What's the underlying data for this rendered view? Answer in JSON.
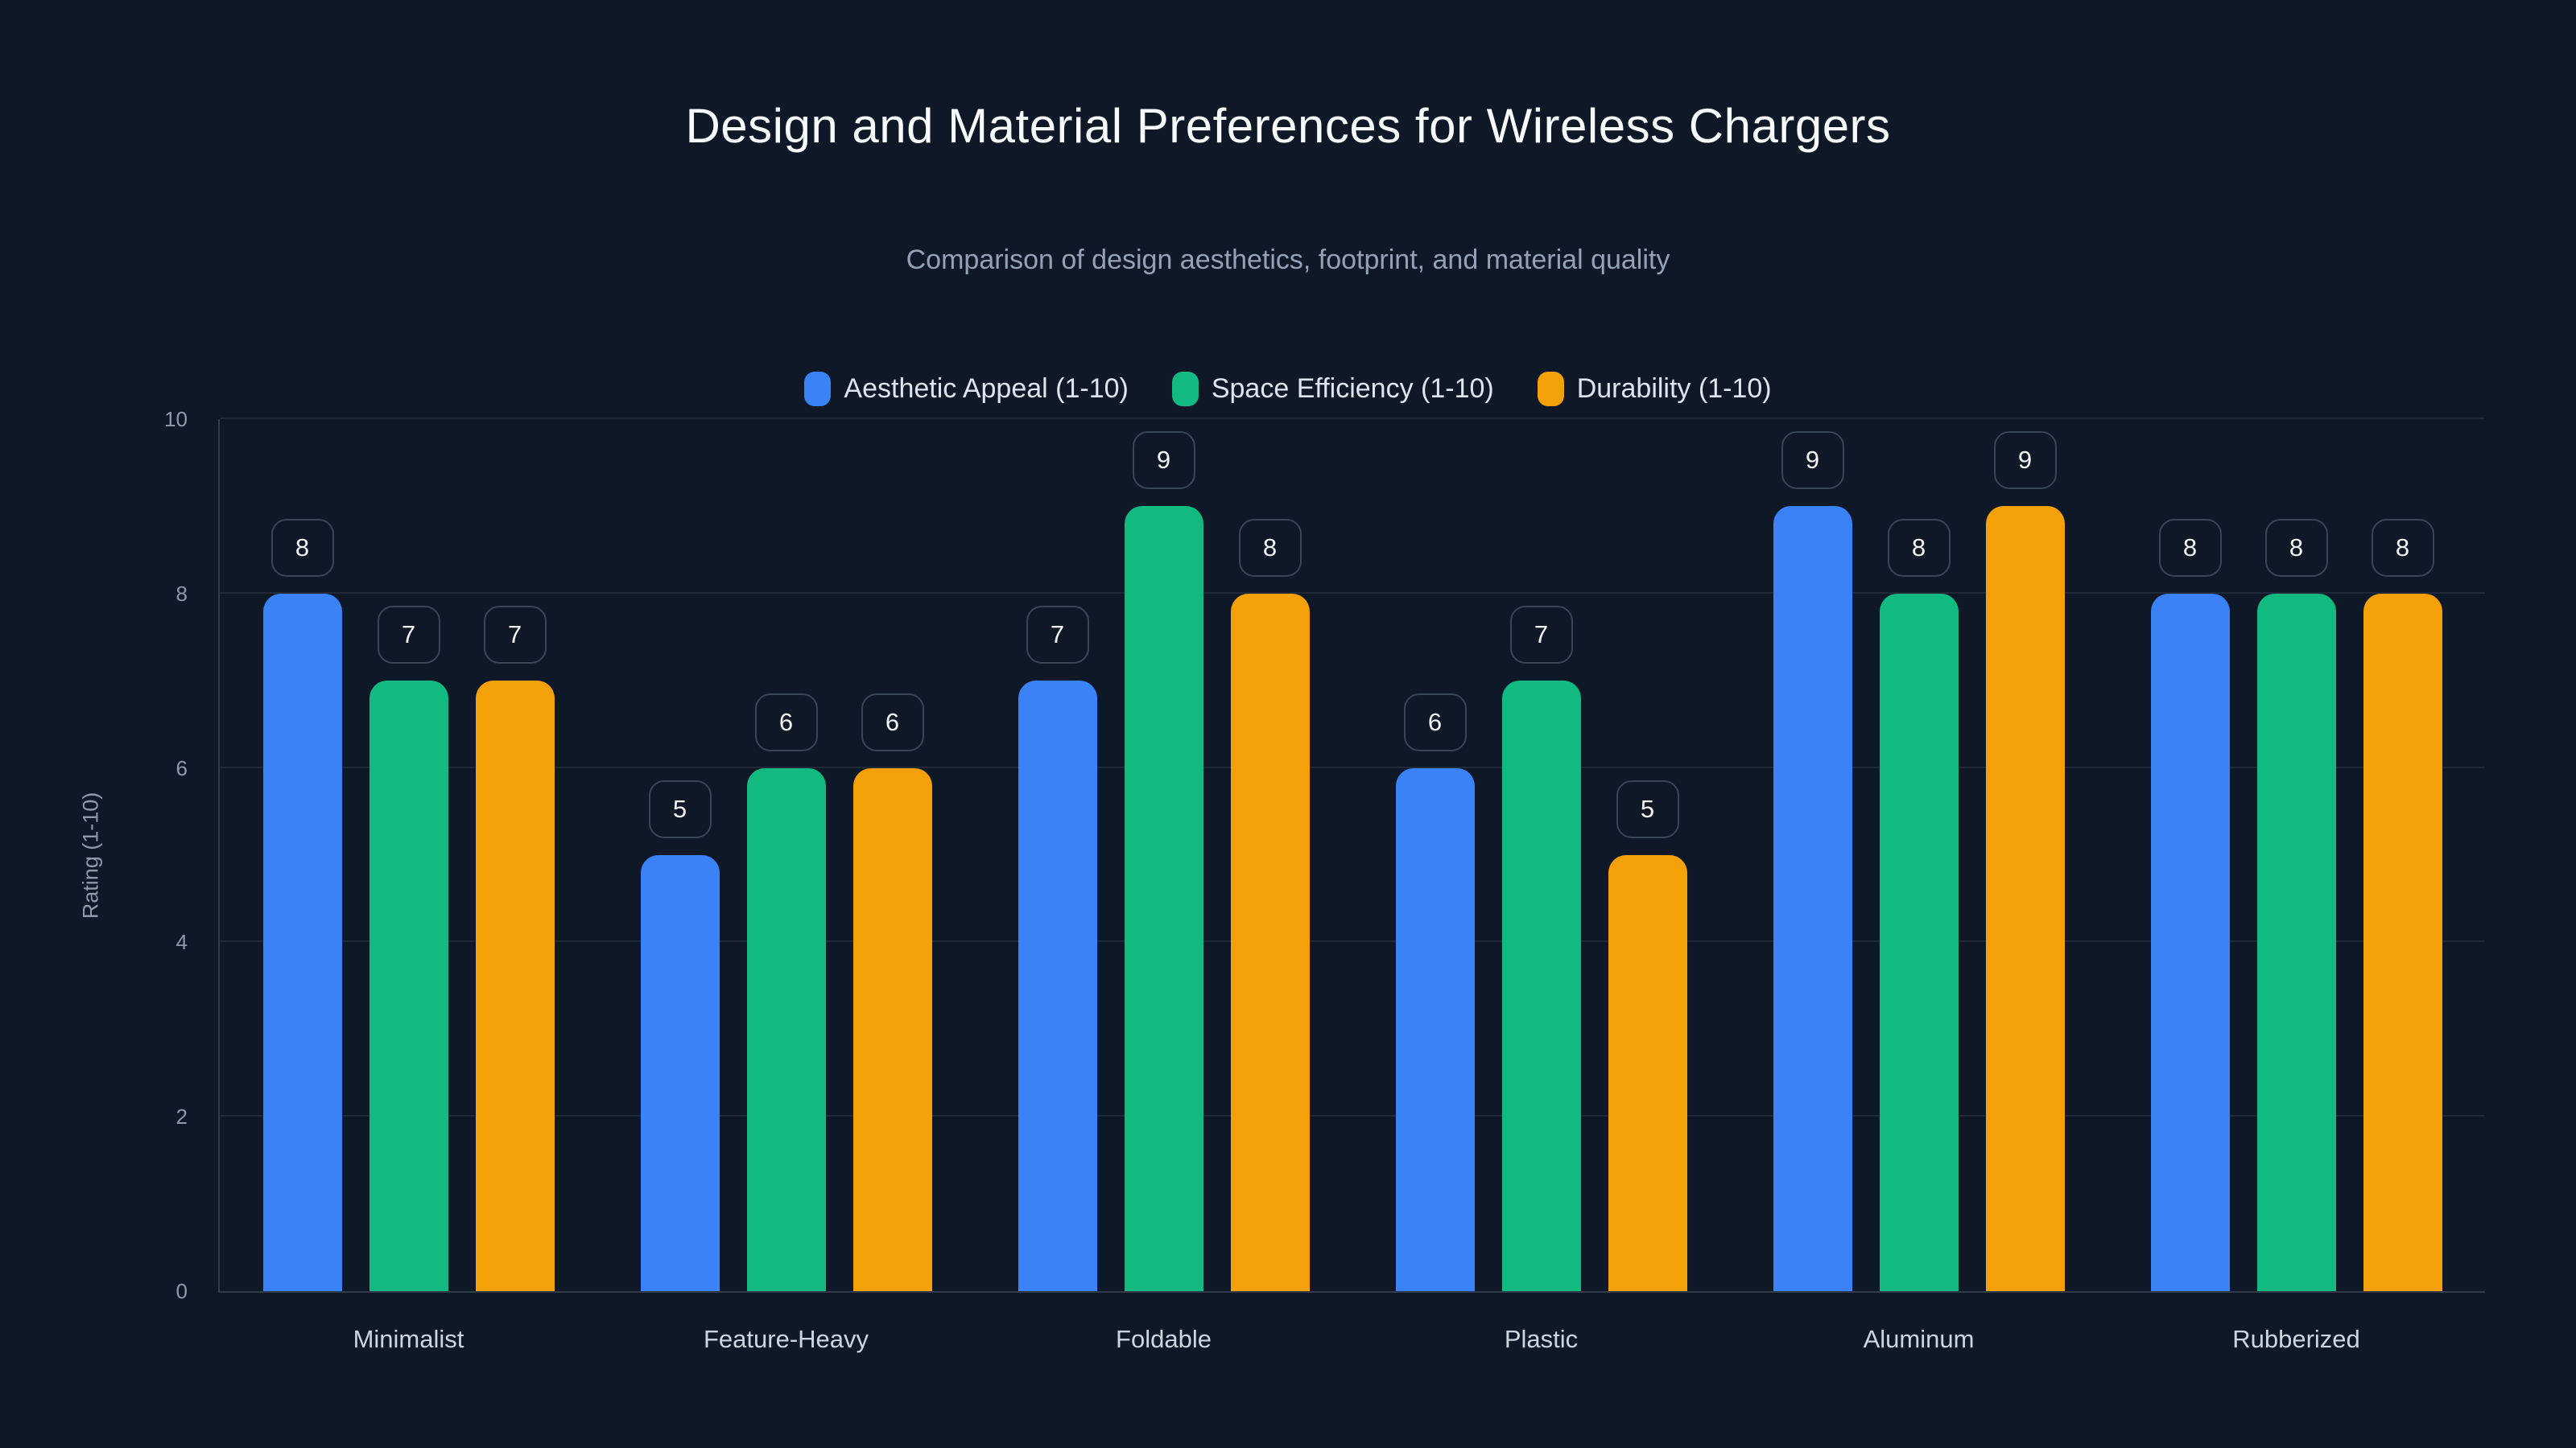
{
  "chart_data": {
    "type": "bar",
    "title": "Design and Material Preferences for Wireless Chargers",
    "subtitle": "Comparison of design aesthetics, footprint, and material quality",
    "xlabel": "",
    "ylabel": "Rating (1-10)",
    "ylim": [
      0,
      10
    ],
    "yticks": [
      0,
      2,
      4,
      6,
      8,
      10
    ],
    "grid": true,
    "legend_position": "top-center",
    "data_labels": "value in rounded box above each bar",
    "categories": [
      "Minimalist",
      "Feature-Heavy",
      "Foldable",
      "Plastic",
      "Aluminum",
      "Rubberized"
    ],
    "series": [
      {
        "name": "Aesthetic Appeal (1-10)",
        "color": "#3b82f6",
        "values": [
          8,
          5,
          7,
          6,
          9,
          8
        ]
      },
      {
        "name": "Space Efficiency (1-10)",
        "color": "#12b981",
        "values": [
          7,
          6,
          9,
          7,
          8,
          8
        ]
      },
      {
        "name": "Durability (1-10)",
        "color": "#f3a009",
        "values": [
          7,
          6,
          8,
          5,
          9,
          8
        ]
      }
    ]
  },
  "colors": {
    "background": "#0f1826",
    "title_text": "#f7fafd",
    "subtitle_text": "#93a2b5",
    "legend_text": "#dde5ee",
    "tick_text": "#8e9aab",
    "category_text": "#ccd6e0",
    "data_label_text": "#f1f5f9",
    "data_label_border": "#394656",
    "series_blue": "#3b82f6",
    "series_green": "#12b981",
    "series_orange": "#f3a009"
  }
}
